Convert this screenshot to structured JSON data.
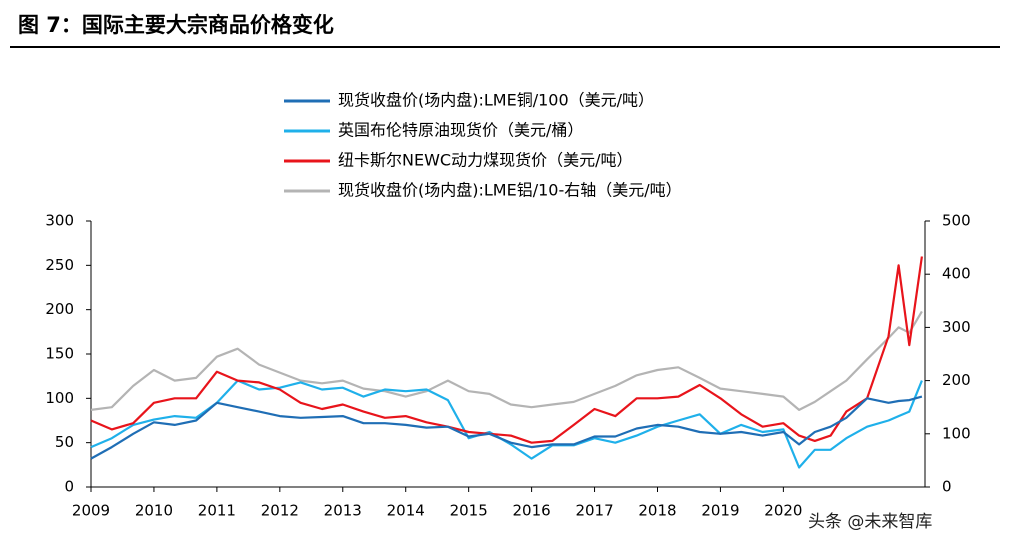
{
  "header": {
    "title": "图 7：国际主要大宗商品价格变化"
  },
  "watermark": "头条 @未来智库",
  "chart_data": {
    "type": "line",
    "x": [
      2009.0,
      2009.33,
      2009.67,
      2010.0,
      2010.33,
      2010.67,
      2011.0,
      2011.33,
      2011.67,
      2012.0,
      2012.33,
      2012.67,
      2013.0,
      2013.33,
      2013.67,
      2014.0,
      2014.33,
      2014.67,
      2015.0,
      2015.33,
      2015.67,
      2016.0,
      2016.33,
      2016.67,
      2017.0,
      2017.33,
      2017.67,
      2018.0,
      2018.33,
      2018.67,
      2019.0,
      2019.33,
      2019.67,
      2020.0,
      2020.25,
      2020.5,
      2020.75,
      2021.0,
      2021.33,
      2021.67,
      2021.83,
      2022.0,
      2022.2
    ],
    "series": [
      {
        "name": "现货收盘价(场内盘):LME铜/100（美元/吨）",
        "color": "#1f6eb5",
        "values": [
          32,
          45,
          60,
          73,
          70,
          75,
          95,
          90,
          85,
          80,
          78,
          79,
          80,
          72,
          72,
          70,
          67,
          68,
          57,
          60,
          50,
          45,
          48,
          48,
          57,
          57,
          66,
          70,
          68,
          62,
          60,
          62,
          58,
          62,
          48,
          62,
          68,
          78,
          100,
          95,
          97,
          98,
          102
        ]
      },
      {
        "name": "英国布伦特原油现货价（美元/桶）",
        "color": "#1fb0ea",
        "values": [
          45,
          55,
          70,
          76,
          80,
          78,
          95,
          120,
          110,
          112,
          118,
          110,
          112,
          102,
          110,
          108,
          110,
          98,
          55,
          62,
          48,
          32,
          47,
          47,
          55,
          50,
          58,
          68,
          75,
          82,
          60,
          70,
          62,
          65,
          22,
          42,
          42,
          55,
          68,
          75,
          80,
          85,
          120
        ]
      },
      {
        "name": "纽卡斯尔NEWC动力煤现货价（美元/吨）",
        "color": "#e8141b",
        "values": [
          75,
          65,
          72,
          95,
          100,
          100,
          130,
          120,
          118,
          110,
          95,
          88,
          93,
          85,
          78,
          80,
          73,
          68,
          62,
          60,
          58,
          50,
          52,
          70,
          88,
          80,
          100,
          100,
          102,
          115,
          100,
          82,
          68,
          72,
          58,
          52,
          58,
          85,
          100,
          170,
          250,
          160,
          260
        ]
      },
      {
        "name": "现货收盘价(场内盘):LME铝/10-右轴（美元/吨）",
        "color": "#b4b4b4",
        "axis": "y2",
        "values": [
          145,
          150,
          190,
          220,
          200,
          205,
          245,
          260,
          230,
          215,
          200,
          195,
          200,
          185,
          180,
          170,
          180,
          200,
          180,
          175,
          155,
          150,
          155,
          160,
          175,
          190,
          210,
          220,
          225,
          205,
          185,
          180,
          175,
          170,
          145,
          160,
          180,
          200,
          240,
          280,
          300,
          290,
          330
        ]
      }
    ],
    "xlim": [
      2009,
      2022.25
    ],
    "xticks": [
      2009,
      2010,
      2011,
      2012,
      2013,
      2014,
      2015,
      2016,
      2017,
      2018,
      2019,
      2020
    ],
    "ylim": [
      0,
      300
    ],
    "yticks": [
      0,
      50,
      100,
      150,
      200,
      250,
      300
    ],
    "y2lim": [
      0,
      500
    ],
    "y2ticks": [
      0,
      100,
      200,
      300,
      400,
      500
    ]
  }
}
